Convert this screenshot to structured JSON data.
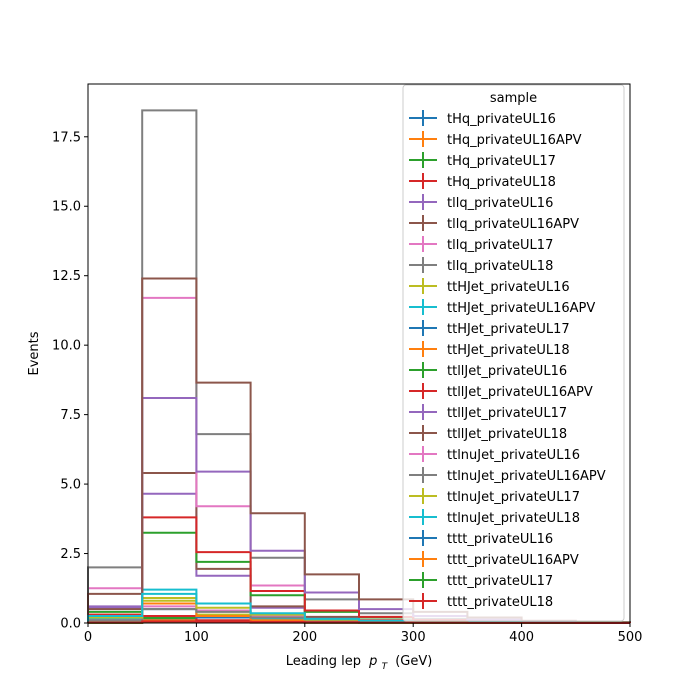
{
  "chart_data": {
    "type": "bar",
    "histtype": "step",
    "xlabel": "Leading lep",
    "xlabel_sub": "T",
    "xlabel_unit": "(GeV)",
    "ylabel": "Events",
    "xlim": [
      0,
      500
    ],
    "ylim": [
      0,
      19.4
    ],
    "xticks": [
      0,
      100,
      200,
      300,
      400,
      500
    ],
    "yticks": [
      0.0,
      2.5,
      5.0,
      7.5,
      10.0,
      12.5,
      15.0,
      17.5
    ],
    "ytick_labels": [
      "0.0",
      "2.5",
      "5.0",
      "7.5",
      "10.0",
      "12.5",
      "15.0",
      "17.5"
    ],
    "bin_edges": [
      0,
      50,
      100,
      150,
      200,
      250,
      300,
      350,
      400,
      450,
      500
    ],
    "grid": false,
    "legend": {
      "title": "sample",
      "placement": "top-right"
    },
    "series": [
      {
        "name": "tHq_privateUL16",
        "color": "#1f77b4",
        "values": [
          0.05,
          0.12,
          0.05,
          0.02,
          0.01,
          0.005,
          0.003,
          0.002,
          0.001,
          0.001
        ]
      },
      {
        "name": "tHq_privateUL16APV",
        "color": "#ff7f0e",
        "values": [
          0.05,
          0.1,
          0.04,
          0.02,
          0.01,
          0.005,
          0.003,
          0.002,
          0.001,
          0.001
        ]
      },
      {
        "name": "tHq_privateUL17",
        "color": "#2ca02c",
        "values": [
          0.08,
          0.18,
          0.07,
          0.03,
          0.015,
          0.008,
          0.004,
          0.002,
          0.001,
          0.001
        ]
      },
      {
        "name": "tHq_privateUL18",
        "color": "#d62728",
        "values": [
          0.12,
          0.25,
          0.1,
          0.04,
          0.02,
          0.01,
          0.005,
          0.003,
          0.002,
          0.001
        ]
      },
      {
        "name": "tllq_privateUL16",
        "color": "#9467bd",
        "values": [
          0.55,
          4.65,
          1.7,
          0.55,
          0.2,
          0.09,
          0.04,
          0.02,
          0.01,
          0.005
        ]
      },
      {
        "name": "tllq_privateUL16APV",
        "color": "#8c564b",
        "values": [
          0.5,
          5.4,
          1.95,
          0.6,
          0.22,
          0.1,
          0.05,
          0.02,
          0.01,
          0.005
        ]
      },
      {
        "name": "tllq_privateUL17",
        "color": "#e377c2",
        "values": [
          1.25,
          11.7,
          4.2,
          1.35,
          0.45,
          0.2,
          0.1,
          0.05,
          0.02,
          0.01
        ]
      },
      {
        "name": "tllq_privateUL18",
        "color": "#7f7f7f",
        "values": [
          2.0,
          18.45,
          6.8,
          2.35,
          0.85,
          0.35,
          0.15,
          0.07,
          0.03,
          0.015
        ]
      },
      {
        "name": "ttHJet_privateUL16",
        "color": "#bcbd22",
        "values": [
          0.15,
          0.9,
          0.3,
          0.1,
          0.04,
          0.02,
          0.01,
          0.005,
          0.002,
          0.001
        ]
      },
      {
        "name": "ttHJet_privateUL16APV",
        "color": "#17becf",
        "values": [
          0.15,
          1.2,
          0.45,
          0.15,
          0.05,
          0.02,
          0.01,
          0.005,
          0.002,
          0.001
        ]
      },
      {
        "name": "ttHJet_privateUL17",
        "color": "#1f77b4",
        "values": [
          0.25,
          0.5,
          0.2,
          0.08,
          0.03,
          0.015,
          0.008,
          0.004,
          0.002,
          0.001
        ]
      },
      {
        "name": "ttHJet_privateUL18",
        "color": "#ff7f0e",
        "values": [
          0.3,
          0.7,
          0.25,
          0.1,
          0.04,
          0.02,
          0.01,
          0.005,
          0.002,
          0.001
        ]
      },
      {
        "name": "ttllJet_privateUL16",
        "color": "#2ca02c",
        "values": [
          0.4,
          3.25,
          2.2,
          1.0,
          0.4,
          0.2,
          0.1,
          0.05,
          0.02,
          0.01
        ]
      },
      {
        "name": "ttllJet_privateUL16APV",
        "color": "#d62728",
        "values": [
          0.3,
          3.8,
          2.55,
          1.15,
          0.45,
          0.22,
          0.11,
          0.05,
          0.02,
          0.01
        ]
      },
      {
        "name": "ttllJet_privateUL17",
        "color": "#9467bd",
        "values": [
          0.6,
          8.1,
          5.45,
          2.6,
          1.1,
          0.5,
          0.25,
          0.12,
          0.05,
          0.02
        ]
      },
      {
        "name": "ttllJet_privateUL18",
        "color": "#8c564b",
        "values": [
          1.05,
          12.4,
          8.65,
          3.95,
          1.75,
          0.85,
          0.4,
          0.2,
          0.08,
          0.03
        ]
      },
      {
        "name": "ttlnuJet_privateUL16",
        "color": "#e377c2",
        "values": [
          0.1,
          0.6,
          0.45,
          0.25,
          0.1,
          0.05,
          0.02,
          0.01,
          0.005,
          0.002
        ]
      },
      {
        "name": "ttlnuJet_privateUL16APV",
        "color": "#7f7f7f",
        "values": [
          0.1,
          0.5,
          0.4,
          0.2,
          0.08,
          0.04,
          0.02,
          0.01,
          0.005,
          0.002
        ]
      },
      {
        "name": "ttlnuJet_privateUL17",
        "color": "#bcbd22",
        "values": [
          0.2,
          0.8,
          0.55,
          0.3,
          0.12,
          0.06,
          0.03,
          0.015,
          0.006,
          0.003
        ]
      },
      {
        "name": "ttlnuJet_privateUL18",
        "color": "#17becf",
        "values": [
          0.25,
          1.05,
          0.7,
          0.35,
          0.15,
          0.07,
          0.035,
          0.02,
          0.008,
          0.004
        ]
      },
      {
        "name": "tttt_privateUL16",
        "color": "#1f77b4",
        "values": [
          0.005,
          0.02,
          0.02,
          0.015,
          0.01,
          0.006,
          0.004,
          0.002,
          0.001,
          0.001
        ]
      },
      {
        "name": "tttt_privateUL16APV",
        "color": "#ff7f0e",
        "values": [
          0.005,
          0.02,
          0.02,
          0.015,
          0.01,
          0.006,
          0.004,
          0.002,
          0.001,
          0.001
        ]
      },
      {
        "name": "tttt_privateUL17",
        "color": "#2ca02c",
        "values": [
          0.01,
          0.04,
          0.04,
          0.03,
          0.02,
          0.012,
          0.007,
          0.004,
          0.002,
          0.001
        ]
      },
      {
        "name": "tttt_privateUL18",
        "color": "#d62728",
        "values": [
          0.015,
          0.06,
          0.05,
          0.04,
          0.025,
          0.015,
          0.009,
          0.005,
          0.003,
          0.001
        ]
      }
    ]
  }
}
